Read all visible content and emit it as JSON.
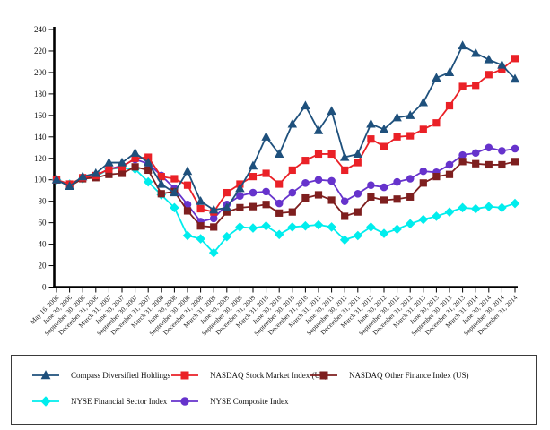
{
  "chart_data": {
    "type": "line",
    "title": "",
    "xlabel": "",
    "ylabel": "",
    "ylim": [
      0,
      240
    ],
    "ytick_step": 20,
    "grid": false,
    "legend_position": "bottom",
    "categories": [
      "May 16, 2006",
      "June 30, 2006",
      "September 30, 2006",
      "December 31, 2006",
      "March 31, 2007",
      "June 30, 2007",
      "September 30, 2007",
      "December 31, 2007",
      "March 31, 2008",
      "June 30, 2008",
      "September 30, 2008",
      "December 31, 2008",
      "March 31, 2009",
      "June 30, 2009",
      "September 30, 2009",
      "December 31, 2009",
      "March 31, 2010",
      "June 30, 2010",
      "September 30, 2010",
      "December 31, 2010",
      "March 31, 2011",
      "June 30, 2011",
      "September 30, 2011",
      "December 31, 2011",
      "March 31, 2012",
      "June 30, 2012",
      "September 30, 2012",
      "December 31, 2012",
      "March 31, 2013",
      "June 30, 2013",
      "September 30, 2013",
      "December 31, 2013",
      "March 31, 2014",
      "June 30, 2014",
      "September 30, 2014",
      "December 31, 2014"
    ],
    "series": [
      {
        "name": "Compass Diversified Holdings",
        "marker": "triangle",
        "color": "#1E507C",
        "values": [
          100,
          94,
          103,
          106,
          116,
          116,
          125,
          116,
          96,
          88,
          108,
          80,
          72,
          74,
          92,
          113,
          140,
          124,
          152,
          169,
          146,
          164,
          121,
          124,
          152,
          147,
          158,
          160,
          172,
          195,
          200,
          225,
          218,
          212,
          207,
          194
        ]
      },
      {
        "name": "NASDAQ Stock Market Index (US)",
        "marker": "square",
        "color": "#EA2127",
        "values": [
          100,
          96,
          102,
          104,
          110,
          112,
          120,
          121,
          103,
          101,
          95,
          73,
          70,
          88,
          96,
          103,
          106,
          96,
          109,
          118,
          124,
          124,
          109,
          116,
          138,
          131,
          140,
          141,
          147,
          153,
          169,
          187,
          188,
          198,
          203,
          213
        ]
      },
      {
        "name": "NASDAQ Other Finance Index (US)",
        "marker": "square",
        "color": "#7E1F1F",
        "values": [
          100,
          94,
          101,
          102,
          105,
          106,
          112,
          109,
          87,
          89,
          71,
          57,
          56,
          70,
          74,
          75,
          77,
          69,
          70,
          83,
          86,
          81,
          66,
          70,
          84,
          81,
          82,
          84,
          97,
          103,
          105,
          117,
          115,
          114,
          114,
          117
        ]
      },
      {
        "name": "NYSE Financial Sector Index",
        "marker": "diamond",
        "color": "#00EDED",
        "values": [
          100,
          96,
          101,
          103,
          110,
          111,
          110,
          98,
          86,
          74,
          48,
          45,
          32,
          47,
          56,
          55,
          57,
          49,
          56,
          57,
          58,
          56,
          44,
          48,
          56,
          50,
          54,
          59,
          63,
          66,
          70,
          74,
          73,
          75,
          74,
          78
        ]
      },
      {
        "name": "NYSE Composite Index",
        "marker": "circle",
        "color": "#6633CC",
        "values": [
          100,
          95,
          102,
          104,
          110,
          113,
          119,
          115,
          104,
          92,
          77,
          61,
          64,
          77,
          85,
          88,
          89,
          78,
          88,
          97,
          100,
          99,
          80,
          87,
          95,
          93,
          98,
          101,
          108,
          107,
          114,
          123,
          125,
          130,
          127,
          129
        ]
      }
    ],
    "yticks": [
      0,
      20,
      40,
      60,
      80,
      100,
      120,
      140,
      160,
      180,
      200,
      220,
      240
    ]
  }
}
